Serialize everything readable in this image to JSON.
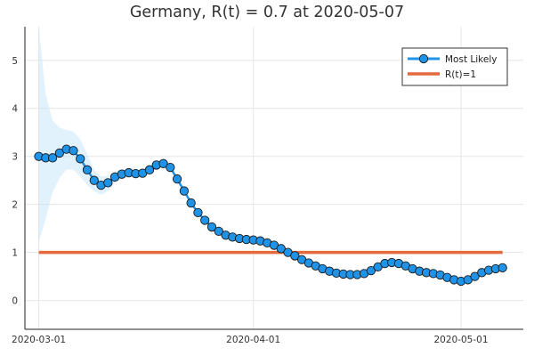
{
  "chart_data": {
    "type": "line",
    "title": "Germany, R(t) = 0.7 at 2020-05-07",
    "xlabel": "",
    "ylabel": "",
    "x_start": "2020-03-01",
    "x_end": "2020-05-07",
    "ylim": [
      -0.6,
      5.7
    ],
    "y_ticks": [
      0,
      1,
      2,
      3,
      4,
      5
    ],
    "x_ticks": [
      "2020-03-01",
      "2020-04-01",
      "2020-05-01"
    ],
    "grid": true,
    "legend_position": "top-right",
    "series": [
      {
        "name": "Most Likely",
        "color": "#1f93e8",
        "marker": "circle",
        "x": [
          "2020-03-01",
          "2020-03-02",
          "2020-03-03",
          "2020-03-04",
          "2020-03-05",
          "2020-03-06",
          "2020-03-07",
          "2020-03-08",
          "2020-03-09",
          "2020-03-10",
          "2020-03-11",
          "2020-03-12",
          "2020-03-13",
          "2020-03-14",
          "2020-03-15",
          "2020-03-16",
          "2020-03-17",
          "2020-03-18",
          "2020-03-19",
          "2020-03-20",
          "2020-03-21",
          "2020-03-22",
          "2020-03-23",
          "2020-03-24",
          "2020-03-25",
          "2020-03-26",
          "2020-03-27",
          "2020-03-28",
          "2020-03-29",
          "2020-03-30",
          "2020-03-31",
          "2020-04-01",
          "2020-04-02",
          "2020-04-03",
          "2020-04-04",
          "2020-04-05",
          "2020-04-06",
          "2020-04-07",
          "2020-04-08",
          "2020-04-09",
          "2020-04-10",
          "2020-04-11",
          "2020-04-12",
          "2020-04-13",
          "2020-04-14",
          "2020-04-15",
          "2020-04-16",
          "2020-04-17",
          "2020-04-18",
          "2020-04-19",
          "2020-04-20",
          "2020-04-21",
          "2020-04-22",
          "2020-04-23",
          "2020-04-24",
          "2020-04-25",
          "2020-04-26",
          "2020-04-27",
          "2020-04-28",
          "2020-04-29",
          "2020-04-30",
          "2020-05-01",
          "2020-05-02",
          "2020-05-03",
          "2020-05-04",
          "2020-05-05",
          "2020-05-06",
          "2020-05-07"
        ],
        "values": [
          3.0,
          2.97,
          2.97,
          3.07,
          3.15,
          3.12,
          2.95,
          2.72,
          2.5,
          2.4,
          2.45,
          2.57,
          2.63,
          2.66,
          2.64,
          2.65,
          2.72,
          2.82,
          2.85,
          2.77,
          2.53,
          2.28,
          2.03,
          1.83,
          1.67,
          1.53,
          1.44,
          1.36,
          1.32,
          1.29,
          1.27,
          1.26,
          1.24,
          1.2,
          1.15,
          1.08,
          1.0,
          0.93,
          0.85,
          0.78,
          0.72,
          0.66,
          0.61,
          0.57,
          0.55,
          0.54,
          0.54,
          0.56,
          0.62,
          0.7,
          0.77,
          0.79,
          0.77,
          0.72,
          0.66,
          0.61,
          0.58,
          0.56,
          0.53,
          0.48,
          0.43,
          0.4,
          0.43,
          0.5,
          0.58,
          0.63,
          0.66,
          0.68
        ]
      },
      {
        "name": "R(t)=1",
        "color": "#e26a3c",
        "marker": "none",
        "x": [
          "2020-03-01",
          "2020-05-07"
        ],
        "values": [
          1,
          1
        ]
      }
    ],
    "band": {
      "color": "#bfe3fb",
      "x": [
        "2020-03-01",
        "2020-03-02",
        "2020-03-03",
        "2020-03-04",
        "2020-03-05",
        "2020-03-06",
        "2020-03-07",
        "2020-03-08",
        "2020-03-09",
        "2020-03-10",
        "2020-03-11",
        "2020-03-12",
        "2020-03-13",
        "2020-03-14",
        "2020-03-15",
        "2020-03-16",
        "2020-03-17",
        "2020-03-18",
        "2020-03-19",
        "2020-03-20",
        "2020-03-21",
        "2020-03-22",
        "2020-03-23",
        "2020-03-24",
        "2020-03-25"
      ],
      "upper": [
        5.7,
        4.3,
        3.75,
        3.6,
        3.55,
        3.52,
        3.35,
        3.05,
        2.72,
        2.58,
        2.6,
        2.68,
        2.73,
        2.75,
        2.73,
        2.74,
        2.8,
        2.88,
        2.9,
        2.82,
        2.58,
        2.32,
        2.07,
        1.86,
        1.7
      ],
      "lower": [
        1.2,
        1.7,
        2.25,
        2.55,
        2.72,
        2.72,
        2.58,
        2.4,
        2.28,
        2.2,
        2.28,
        2.45,
        2.52,
        2.57,
        2.55,
        2.56,
        2.64,
        2.76,
        2.8,
        2.72,
        2.48,
        2.24,
        1.99,
        1.8,
        1.64
      ]
    }
  }
}
